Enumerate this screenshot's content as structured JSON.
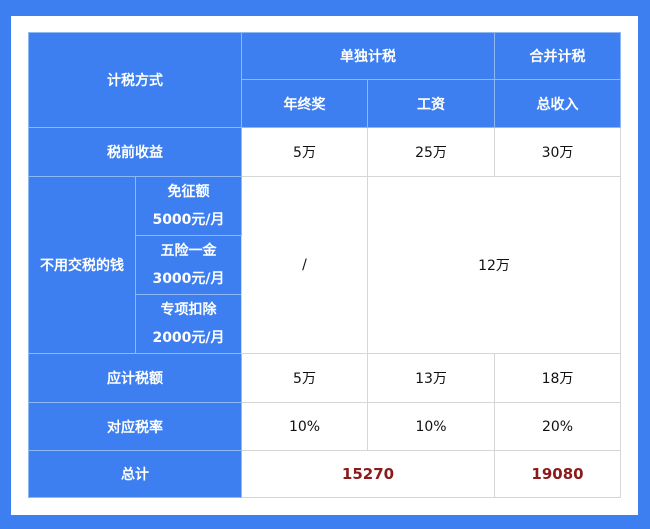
{
  "header": {
    "method": "计税方式",
    "separate": "单独计税",
    "combined": "合并计税",
    "bonus": "年终奖",
    "salary": "工资",
    "total_income": "总收入"
  },
  "rows": {
    "pretax": {
      "label": "税前收益",
      "bonus": "5万",
      "salary": "25万",
      "total": "30万"
    },
    "exempt": {
      "label": "不用交税的钱",
      "items": [
        {
          "name": "免征额",
          "amount": "5000元/月"
        },
        {
          "name": "五险一金",
          "amount": "3000元/月"
        },
        {
          "name": "专项扣除",
          "amount": "2000元/月"
        }
      ],
      "bonus": "/",
      "rest": "12万"
    },
    "taxable": {
      "label": "应计税额",
      "bonus": "5万",
      "salary": "13万",
      "total": "18万"
    },
    "rate": {
      "label": "对应税率",
      "bonus": "10%",
      "salary": "10%",
      "total": "20%"
    },
    "sum": {
      "label": "总计",
      "separate": "15270",
      "combined": "19080"
    }
  },
  "colors": {
    "header_blue": "#3d7ff0",
    "total_red": "#8b1a1a"
  }
}
